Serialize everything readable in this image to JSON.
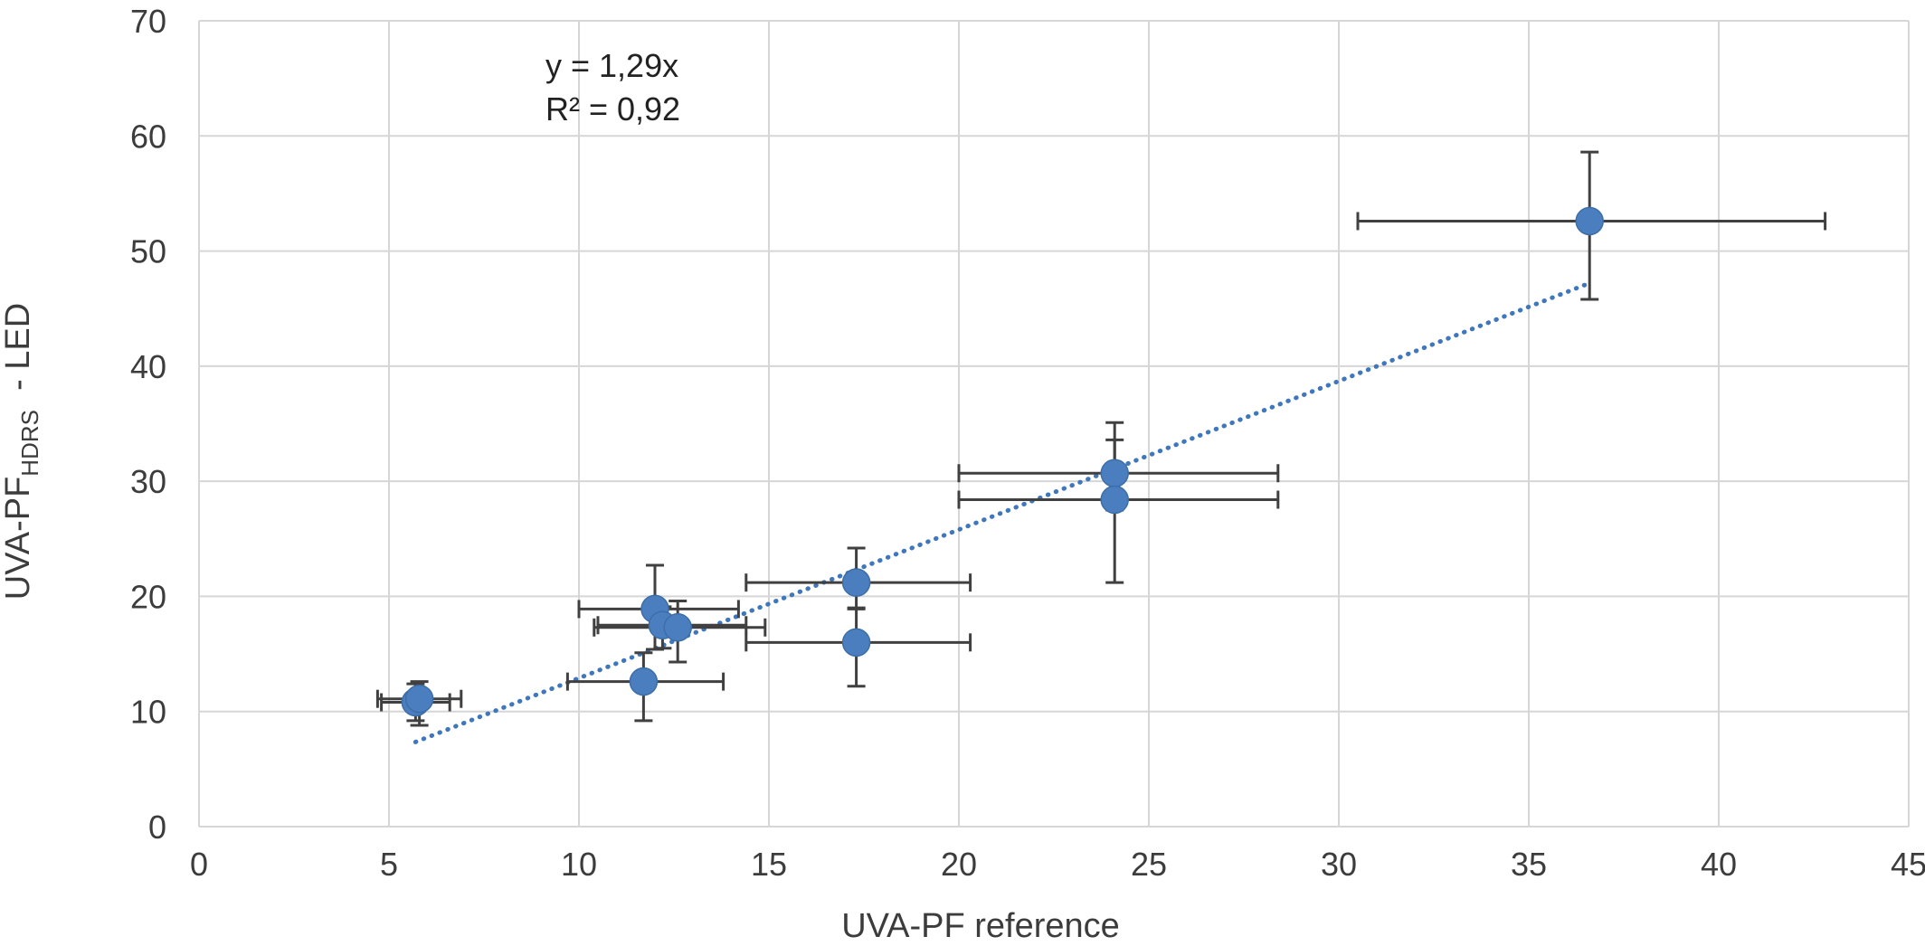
{
  "chart_data": {
    "type": "scatter",
    "title": "",
    "xlabel": "UVA-PF  reference",
    "ylabel": {
      "main": "UVA-PF",
      "subscript": "HDRS",
      "suffix": "  - LED"
    },
    "xlim": [
      0,
      45
    ],
    "ylim": [
      0,
      70
    ],
    "x_ticks": [
      0,
      5,
      10,
      15,
      20,
      25,
      30,
      35,
      40,
      45
    ],
    "y_ticks": [
      0,
      10,
      20,
      30,
      40,
      50,
      60,
      70
    ],
    "grid": true,
    "legend": "none",
    "colors": {
      "marker": "#4a7ebf",
      "error_bar": "#404040",
      "trendline": "#3e77bd",
      "grid": "#d6d6d6"
    },
    "series": [
      {
        "points": [
          {
            "x": 5.7,
            "y": 10.8,
            "xerr_low": 0.9,
            "xerr_high": 0.9,
            "yerr_low": 1.6,
            "yerr_high": 1.6
          },
          {
            "x": 5.8,
            "y": 11.1,
            "xerr_low": 1.1,
            "xerr_high": 1.1,
            "yerr_low": 2.3,
            "yerr_high": 1.5
          },
          {
            "x": 11.7,
            "y": 12.6,
            "xerr_low": 2.0,
            "xerr_high": 2.1,
            "yerr_low": 3.4,
            "yerr_high": 2.5
          },
          {
            "x": 12.0,
            "y": 18.9,
            "xerr_low": 2.0,
            "xerr_high": 2.2,
            "yerr_low": 3.5,
            "yerr_high": 3.8
          },
          {
            "x": 12.2,
            "y": 17.5,
            "xerr_low": 1.7,
            "xerr_high": 2.2,
            "yerr_low": 2.0,
            "yerr_high": 1.6
          },
          {
            "x": 12.6,
            "y": 17.3,
            "xerr_low": 2.2,
            "xerr_high": 2.3,
            "yerr_low": 3.0,
            "yerr_high": 2.3
          },
          {
            "x": 17.3,
            "y": 21.2,
            "xerr_low": 2.9,
            "xerr_high": 3.0,
            "yerr_low": 2.3,
            "yerr_high": 3.0
          },
          {
            "x": 17.3,
            "y": 16.0,
            "xerr_low": 2.9,
            "xerr_high": 3.0,
            "yerr_low": 3.8,
            "yerr_high": 3.0
          },
          {
            "x": 24.1,
            "y": 30.7,
            "xerr_low": 4.1,
            "xerr_high": 4.3,
            "yerr_low": 3.2,
            "yerr_high": 4.4
          },
          {
            "x": 24.1,
            "y": 28.4,
            "xerr_low": 4.1,
            "xerr_high": 4.3,
            "yerr_low": 7.2,
            "yerr_high": 5.2
          },
          {
            "x": 36.6,
            "y": 52.6,
            "xerr_low": 6.1,
            "xerr_high": 6.2,
            "yerr_low": 6.8,
            "yerr_high": 6.0
          }
        ]
      }
    ],
    "trendline": {
      "type": "linear",
      "slope": 1.29,
      "intercept": 0,
      "x_range": [
        5.7,
        36.6
      ]
    },
    "annotations": {
      "equation": "y = 1,29x",
      "r_squared": "R² = 0,92"
    }
  }
}
